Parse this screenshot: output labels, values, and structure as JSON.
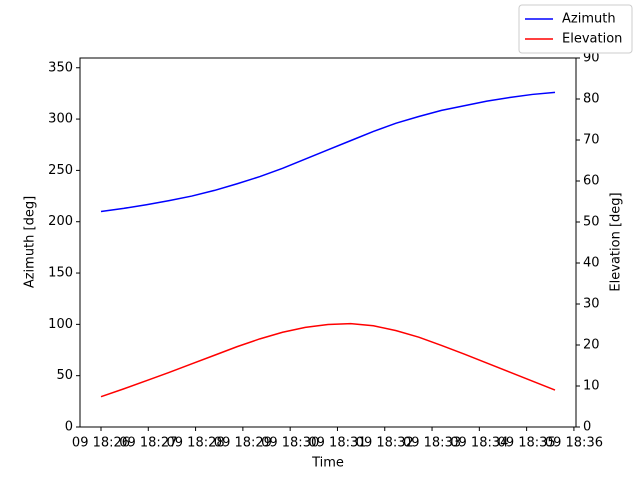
{
  "chart_data": {
    "type": "line",
    "x_label": "Time",
    "y_label": "Azimuth [deg]",
    "y2_label": "Elevation [deg]",
    "x": [
      26.0,
      26.48,
      26.96,
      27.44,
      27.92,
      28.4,
      28.88,
      29.36,
      29.84,
      30.32,
      30.8,
      31.28,
      31.76,
      32.24,
      32.72,
      33.2,
      33.68,
      34.16,
      34.64,
      35.12,
      35.6
    ],
    "series": [
      {
        "name": "Azimuth",
        "color": "#0000ff",
        "values": [
          210,
          213,
          216.5,
          220.5,
          225,
          230.5,
          237,
          244,
          252,
          261,
          270,
          279,
          288,
          296,
          302.5,
          308.5,
          313,
          317.5,
          321,
          324,
          326
        ]
      },
      {
        "name": "Elevation",
        "color": "#ff0000",
        "axis": "y2",
        "values": [
          7.4,
          9.3,
          11.3,
          13.3,
          15.4,
          17.5,
          19.6,
          21.5,
          23.1,
          24.3,
          25.0,
          25.2,
          24.7,
          23.5,
          21.9,
          19.9,
          17.8,
          15.6,
          13.4,
          11.2,
          9.0
        ]
      }
    ],
    "xlim": [
      25.556,
      36.044
    ],
    "xticks": [
      {
        "value": 26,
        "label": "09 18:26"
      },
      {
        "value": 27,
        "label": "09 18:27"
      },
      {
        "value": 28,
        "label": "09 18:28"
      },
      {
        "value": 29,
        "label": "09 18:29"
      },
      {
        "value": 30,
        "label": "09 18:30"
      },
      {
        "value": 31,
        "label": "09 18:31"
      },
      {
        "value": 32,
        "label": "09 18:32"
      },
      {
        "value": 33,
        "label": "09 18:33"
      },
      {
        "value": 34,
        "label": "09 18:34"
      },
      {
        "value": 35,
        "label": "09 18:35"
      },
      {
        "value": 36,
        "label": "09 18:36"
      }
    ],
    "ylim": [
      0,
      359.5
    ],
    "yticks": [
      0,
      50,
      100,
      150,
      200,
      250,
      300,
      350
    ],
    "y2lim": [
      0,
      90
    ],
    "y2ticks": [
      0,
      10,
      20,
      30,
      40,
      50,
      60,
      70,
      80,
      90
    ],
    "legend": "upper right"
  }
}
